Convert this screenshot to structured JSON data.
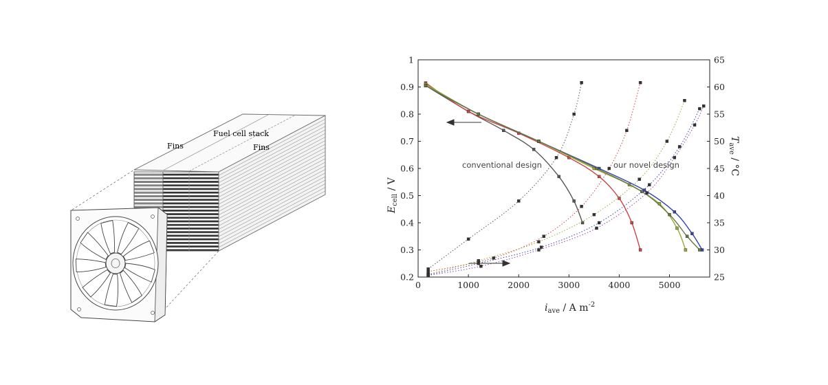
{
  "illustration": {
    "labels": {
      "fuel_cell_stack": "Fuel cell stack",
      "fins_left": "Fins",
      "fins_right": "Fins"
    }
  },
  "chart_data": {
    "type": "line",
    "x_axis": {
      "label_main": "i",
      "label_sub": "ave",
      "label_units": " / A m",
      "label_sup": "-2",
      "range": [
        0,
        5800
      ],
      "ticks": [
        0,
        1000,
        2000,
        3000,
        4000,
        5000
      ]
    },
    "y_left": {
      "label_main": "E",
      "label_sub": "cell",
      "label_units": " / V",
      "range": [
        0.2,
        1.0
      ],
      "ticks": [
        0.2,
        0.3,
        0.4,
        0.5,
        0.6,
        0.7,
        0.8,
        0.9,
        1
      ]
    },
    "y_right": {
      "label_main": "T",
      "label_sub": "ave",
      "label_units": " / °C",
      "range": [
        25,
        65
      ],
      "ticks": [
        25,
        30,
        35,
        40,
        45,
        50,
        55,
        60,
        65
      ]
    },
    "annotations": {
      "conventional": "conventional design",
      "novel": "our novel design"
    },
    "colors": {
      "conventional": "#555555",
      "red": "#cc4444",
      "green": "#99aa33",
      "blue": "#3344aa",
      "purple": "#9944aa",
      "olive": "#667744"
    },
    "series": [
      {
        "axis": "left",
        "color": "#555555",
        "x": [
          150,
          1000,
          1700,
          2300,
          2800,
          3100,
          3270
        ],
        "y": [
          0.905,
          0.81,
          0.74,
          0.67,
          0.57,
          0.48,
          0.4
        ]
      },
      {
        "axis": "left",
        "color": "#cc4444",
        "x": [
          150,
          1000,
          2000,
          3000,
          3600,
          4000,
          4250,
          4420
        ],
        "y": [
          0.915,
          0.81,
          0.73,
          0.64,
          0.57,
          0.49,
          0.4,
          0.3
        ]
      },
      {
        "axis": "left",
        "color": "#99aa33",
        "x": [
          150,
          1200,
          2400,
          3500,
          4200,
          4800,
          5150,
          5320
        ],
        "y": [
          0.91,
          0.8,
          0.7,
          0.6,
          0.54,
          0.47,
          0.38,
          0.3
        ]
      },
      {
        "axis": "left",
        "color": "#3344aa",
        "x": [
          150,
          1200,
          2400,
          3600,
          4500,
          5100,
          5450,
          5650
        ],
        "y": [
          0.905,
          0.8,
          0.7,
          0.6,
          0.52,
          0.44,
          0.36,
          0.3
        ]
      },
      {
        "axis": "left",
        "color": "#667744",
        "x": [
          150,
          1200,
          2400,
          3550,
          4450,
          5000,
          5350,
          5600
        ],
        "y": [
          0.905,
          0.8,
          0.7,
          0.6,
          0.515,
          0.43,
          0.35,
          0.3
        ]
      },
      {
        "axis": "right",
        "color": "#555555",
        "dotted": true,
        "x": [
          200,
          1000,
          2000,
          2750,
          3100,
          3250
        ],
        "y": [
          26.5,
          32,
          39,
          47,
          55,
          60.8
        ]
      },
      {
        "axis": "right",
        "color": "#cc4444",
        "dotted": true,
        "x": [
          200,
          1500,
          2500,
          3250,
          3800,
          4150,
          4420
        ],
        "y": [
          26,
          28.5,
          32.5,
          38,
          45,
          52,
          60.8
        ]
      },
      {
        "axis": "right",
        "color": "#99aa33",
        "dotted": true,
        "x": [
          200,
          1200,
          2400,
          3500,
          4400,
          4950,
          5300
        ],
        "y": [
          25.5,
          28,
          31.5,
          36.5,
          43,
          50,
          57.5
        ]
      },
      {
        "axis": "right",
        "color": "#3344aa",
        "dotted": true,
        "x": [
          200,
          1200,
          2450,
          3600,
          4600,
          5200,
          5600
        ],
        "y": [
          25.4,
          27.5,
          30.5,
          35,
          42,
          49,
          56
        ]
      },
      {
        "axis": "right",
        "color": "#9944aa",
        "dotted": true,
        "x": [
          200,
          1250,
          2400,
          3550,
          4550,
          5100,
          5500,
          5680
        ],
        "y": [
          25.3,
          27,
          30,
          34,
          40.5,
          47,
          53,
          56.5
        ]
      }
    ]
  }
}
